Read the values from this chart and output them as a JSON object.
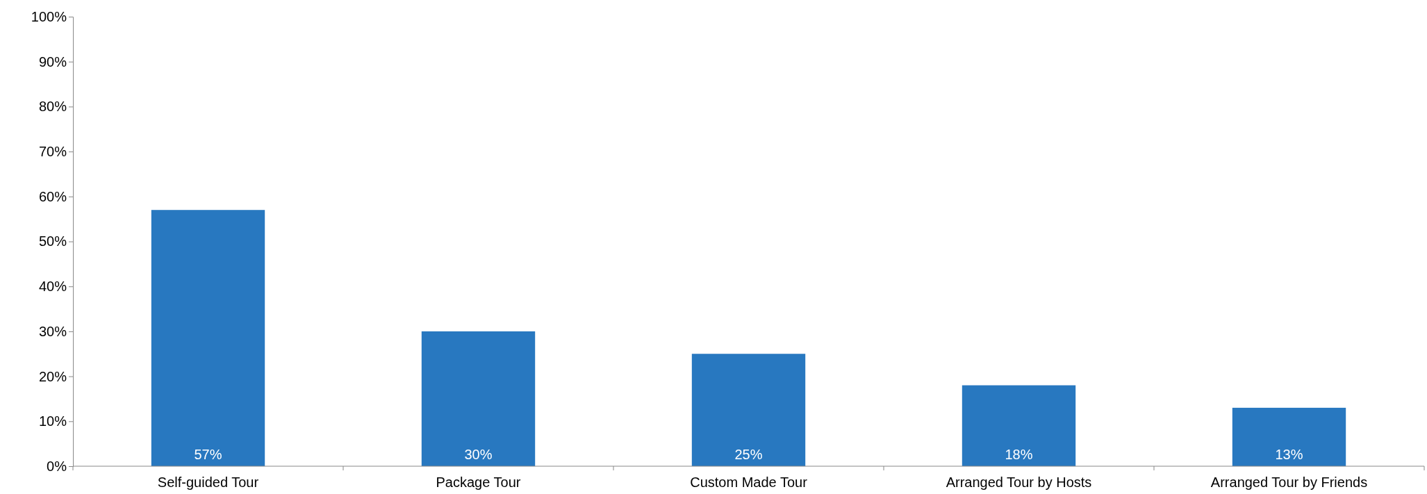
{
  "chart_data": {
    "type": "bar",
    "categories": [
      "Self-guided Tour",
      "Package Tour",
      "Custom Made Tour",
      "Arranged Tour by Hosts",
      "Arranged Tour by Friends"
    ],
    "values": [
      57,
      30,
      25,
      18,
      13
    ],
    "color": "#2878c0",
    "ylim": [
      0,
      100
    ],
    "yticks": [
      {
        "value": 0,
        "label": "0%"
      },
      {
        "value": 10,
        "label": "10%"
      },
      {
        "value": 20,
        "label": "20%"
      },
      {
        "value": 30,
        "label": "30%"
      },
      {
        "value": 40,
        "label": "40%"
      },
      {
        "value": 50,
        "label": "50%"
      },
      {
        "value": 60,
        "label": "60%"
      },
      {
        "value": 70,
        "label": "70%"
      },
      {
        "value": 80,
        "label": "80%"
      },
      {
        "value": 90,
        "label": "90%"
      },
      {
        "value": 100,
        "label": "100%"
      }
    ],
    "value_labels": [
      "57%",
      "30%",
      "25%",
      "18%",
      "13%"
    ]
  }
}
